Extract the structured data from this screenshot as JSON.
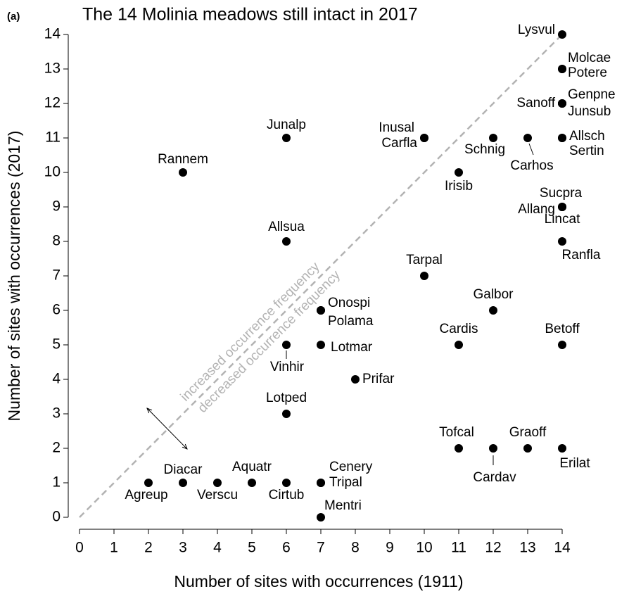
{
  "chart_data": {
    "type": "scatter",
    "panel_label": "(a)",
    "title": "The 14 Molinia meadows still intact in 2017",
    "x_label": "Number of sites with occurrences (1911)",
    "y_label": "Number of sites with occurrences (2017)",
    "annotations": [
      "increased occurrence frequency",
      "decreased occurrence frequency"
    ],
    "xlim": [
      0,
      14
    ],
    "ylim": [
      0,
      14
    ],
    "xticks": [
      0,
      1,
      2,
      3,
      4,
      5,
      6,
      7,
      8,
      9,
      10,
      11,
      12,
      13,
      14
    ],
    "yticks": [
      0,
      1,
      2,
      3,
      4,
      5,
      6,
      7,
      8,
      9,
      10,
      11,
      12,
      13,
      14
    ],
    "series": [
      {
        "color": "#000000",
        "point_labels": [
          "Lysvul",
          "Molcae",
          "Potere",
          "Genpne",
          "Junsub",
          "Sanoff",
          "Inusal",
          "Carfla",
          "Junalp",
          "Rannem",
          "Schnig",
          "Carhos",
          "Allsch",
          "Sertin",
          "Irisib",
          "Sucpra",
          "Allang",
          "Lincat",
          "Ranfla",
          "Allsua",
          "Tarpal",
          "Galbor",
          "Onospi",
          "Polama",
          "Cardis",
          "Betoff",
          "Lotmar",
          "Vinhir",
          "Prifar",
          "Lotped",
          "Tofcal",
          "Cardav",
          "Graoff",
          "Erilat",
          "Cenery",
          "Tripal",
          "Aquatr",
          "Diacar",
          "Agreup",
          "Verscu",
          "Cirtub",
          "Mentri"
        ],
        "x": [
          14,
          14,
          14,
          14,
          14,
          14,
          10,
          10,
          6,
          3,
          12,
          13,
          14,
          14,
          11,
          14,
          14,
          14,
          14,
          6,
          10,
          12,
          7,
          7,
          11,
          14,
          7,
          6,
          8,
          6,
          11,
          12,
          13,
          14,
          7,
          7,
          5,
          3,
          2,
          4,
          6,
          7
        ],
        "values": [
          14,
          13,
          13,
          12,
          12,
          12,
          11,
          11,
          11,
          10,
          11,
          11,
          11,
          11,
          10,
          9,
          9,
          9,
          8,
          8,
          7,
          6,
          6,
          6,
          5,
          5,
          5,
          5,
          4,
          3,
          2,
          2,
          2,
          2,
          1,
          1,
          1,
          1,
          1,
          1,
          1,
          0
        ]
      }
    ]
  }
}
